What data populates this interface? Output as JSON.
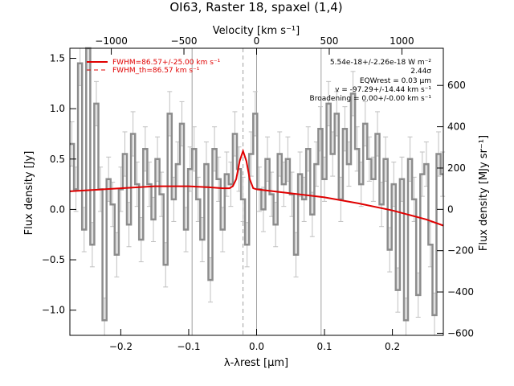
{
  "chart_data": {
    "type": "line",
    "title": "OI63, Raster 18, spaxel (1,4)",
    "xlabel": "λ-λrest [μm]",
    "ylabel": "Flux density [Jy]",
    "top_xlabel": "Velocity [km s⁻¹]",
    "right_ylabel": "Flux density [MJy sr⁻¹]",
    "xlim": [
      -0.275,
      0.275
    ],
    "ylim": [
      -1.25,
      1.6
    ],
    "top_xlim": [
      -1285,
      1285
    ],
    "right_ylim": [
      -610,
      780
    ],
    "x_ticks": [
      -0.2,
      -0.1,
      0.0,
      0.1,
      0.2
    ],
    "x_tick_labels": [
      "−0.2",
      "−0.1",
      "0.0",
      "0.1",
      "0.2"
    ],
    "y_ticks": [
      -1.0,
      -0.5,
      0.0,
      0.5,
      1.0,
      1.5
    ],
    "y_tick_labels": [
      "−1.0",
      "−0.5",
      "0.0",
      "0.5",
      "1.0",
      "1.5"
    ],
    "top_ticks": [
      -1000,
      -500,
      0,
      500,
      1000
    ],
    "top_tick_labels": [
      "−1000",
      "−500",
      "0",
      "500",
      "1000"
    ],
    "right_ticks": [
      -600,
      -400,
      -200,
      0,
      200,
      400,
      600
    ],
    "right_tick_labels": [
      "−600",
      "−400",
      "−200",
      "0",
      "200",
      "400",
      "600"
    ],
    "grid": false,
    "legend_position": "top-left",
    "annotation_position": "top-right",
    "colors": {
      "data": "#8c8c8c",
      "error": "#c0c0c0",
      "fit": "#e00000",
      "marker": "#a0a0a0"
    },
    "vertical_lines": [
      -0.095,
      0.0,
      0.095
    ],
    "dashed_line_x": -0.02,
    "series": [
      {
        "name": "FWHM=86.57+/-25.00 km s⁻¹",
        "style": "solid",
        "x": [
          -0.275,
          -0.2,
          -0.15,
          -0.1,
          -0.07,
          -0.05,
          -0.04,
          -0.035,
          -0.03,
          -0.025,
          -0.02,
          -0.015,
          -0.01,
          -0.005,
          0.0,
          0.05,
          0.1,
          0.15,
          0.2,
          0.25,
          0.275
        ],
        "y": [
          0.18,
          0.21,
          0.23,
          0.23,
          0.22,
          0.21,
          0.21,
          0.23,
          0.3,
          0.48,
          0.58,
          0.48,
          0.3,
          0.21,
          0.2,
          0.16,
          0.12,
          0.06,
          -0.01,
          -0.1,
          -0.16
        ]
      },
      {
        "name": "FWHM_th=86.57 km s⁻¹",
        "style": "dashed",
        "x": [],
        "y": []
      },
      {
        "name": "spectrum",
        "style": "steps",
        "x": [
          -0.272,
          -0.266,
          -0.26,
          -0.254,
          -0.248,
          -0.242,
          -0.236,
          -0.23,
          -0.224,
          -0.218,
          -0.212,
          -0.206,
          -0.2,
          -0.194,
          -0.188,
          -0.182,
          -0.176,
          -0.17,
          -0.164,
          -0.158,
          -0.152,
          -0.146,
          -0.14,
          -0.134,
          -0.128,
          -0.122,
          -0.116,
          -0.11,
          -0.104,
          -0.098,
          -0.092,
          -0.086,
          -0.08,
          -0.074,
          -0.068,
          -0.062,
          -0.056,
          -0.05,
          -0.044,
          -0.038,
          -0.032,
          -0.026,
          -0.02,
          -0.014,
          -0.008,
          -0.002,
          0.004,
          0.01,
          0.016,
          0.022,
          0.028,
          0.034,
          0.04,
          0.046,
          0.052,
          0.058,
          0.064,
          0.07,
          0.076,
          0.082,
          0.088,
          0.094,
          0.1,
          0.106,
          0.112,
          0.118,
          0.124,
          0.13,
          0.136,
          0.142,
          0.148,
          0.154,
          0.16,
          0.166,
          0.172,
          0.178,
          0.184,
          0.19,
          0.196,
          0.202,
          0.208,
          0.214,
          0.22,
          0.226,
          0.232,
          0.238,
          0.244,
          0.25,
          0.256,
          0.262,
          0.268,
          0.274
        ],
        "y": [
          0.65,
          0.2,
          1.45,
          -0.2,
          1.6,
          -0.35,
          1.05,
          0.2,
          -1.1,
          0.3,
          0.05,
          -0.45,
          0.2,
          0.55,
          -0.15,
          0.75,
          0.25,
          -0.3,
          0.6,
          0.25,
          -0.1,
          0.5,
          0.15,
          -0.55,
          0.95,
          0.1,
          0.45,
          0.85,
          -0.2,
          0.4,
          0.6,
          0.1,
          -0.3,
          0.45,
          -0.7,
          0.6,
          0.3,
          -0.2,
          0.35,
          0.25,
          0.75,
          0.4,
          0.1,
          -0.35,
          0.55,
          0.95,
          0.2,
          0.0,
          0.5,
          0.15,
          -0.15,
          0.55,
          0.25,
          0.5,
          0.15,
          -0.45,
          0.35,
          0.1,
          0.6,
          -0.05,
          0.45,
          0.8,
          0.3,
          1.05,
          0.55,
          0.95,
          0.1,
          0.8,
          0.45,
          1.15,
          0.6,
          0.25,
          0.85,
          0.5,
          0.3,
          0.75,
          0.05,
          0.5,
          -0.4,
          0.25,
          -0.8,
          0.3,
          -1.1,
          0.5,
          0.1,
          -0.85,
          0.35,
          0.45,
          -0.35,
          -1.05,
          0.55,
          0.35
        ],
        "err": 0.22
      }
    ]
  },
  "annotations": {
    "line1": "5.54e-18+/-2.26e-18 W m⁻²",
    "line2": "2.44σ",
    "line3": "EQWrest = 0.03 μm",
    "line4": "v = -97.29+/-14.44 km s⁻¹",
    "line5": "Broadening = 0.00+/-0.00 km s⁻¹"
  }
}
